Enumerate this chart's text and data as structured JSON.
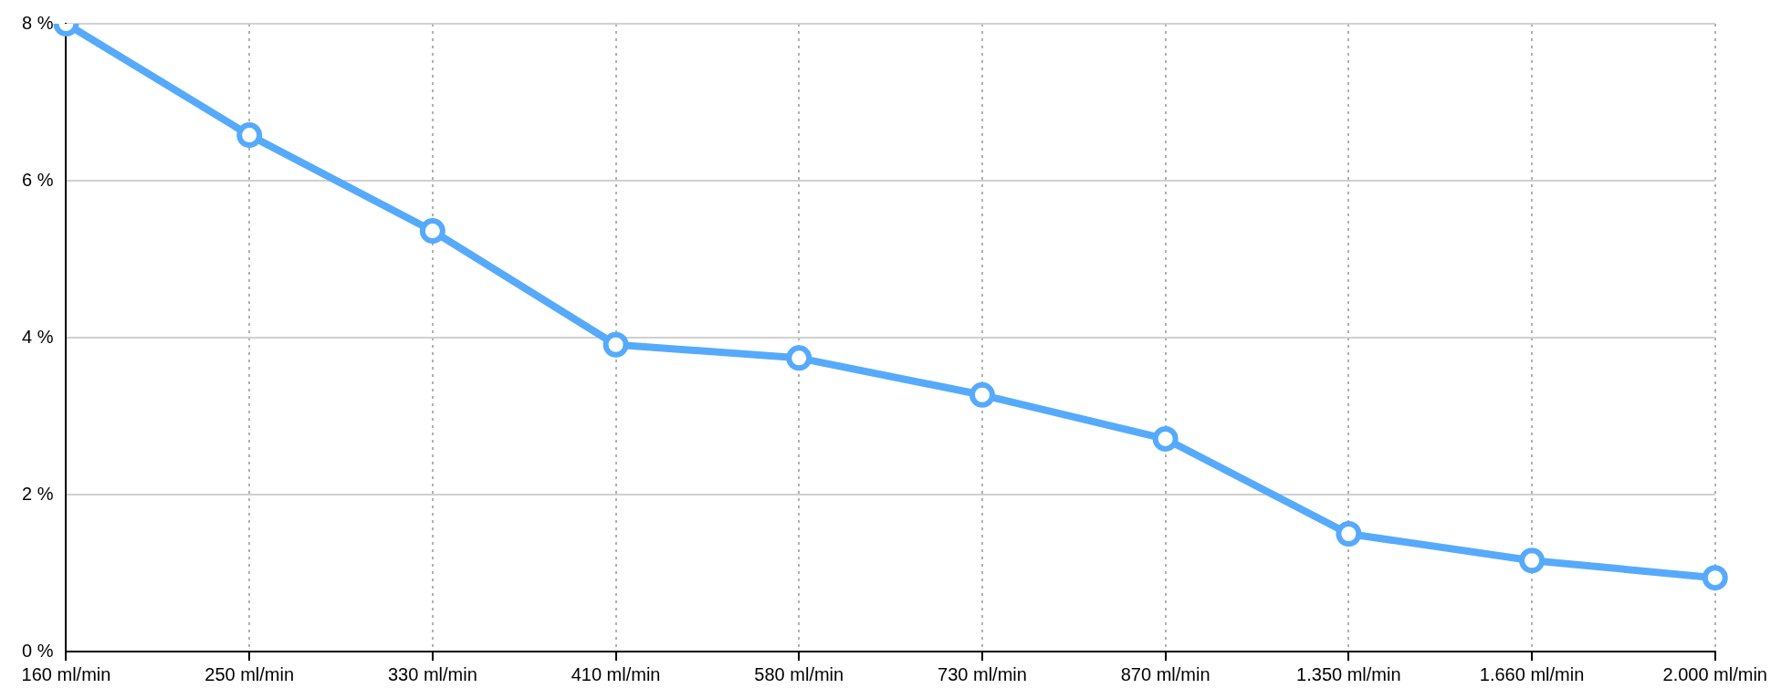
{
  "chart_data": {
    "type": "line",
    "categories": [
      "160 ml/min",
      "250 ml/min",
      "330 ml/min",
      "410 ml/min",
      "580 ml/min",
      "730 ml/min",
      "870 ml/min",
      "1.350 ml/min",
      "1.660 ml/min",
      "2.000 ml/min"
    ],
    "series": [
      {
        "color": "#56aafc",
        "values": [
          8.0,
          6.58,
          5.36,
          3.91,
          3.74,
          3.27,
          2.71,
          1.5,
          1.16,
          0.94
        ]
      }
    ],
    "ylim": [
      0,
      8
    ],
    "yticks": [
      {
        "value": 0,
        "label": "0 %"
      },
      {
        "value": 2,
        "label": "2 %"
      },
      {
        "value": 4,
        "label": "4 %"
      },
      {
        "value": 6,
        "label": "6 %"
      },
      {
        "value": 8,
        "label": "8 %"
      }
    ],
    "grid": true,
    "legend": false,
    "marker": "circle",
    "line_style": "solid"
  }
}
